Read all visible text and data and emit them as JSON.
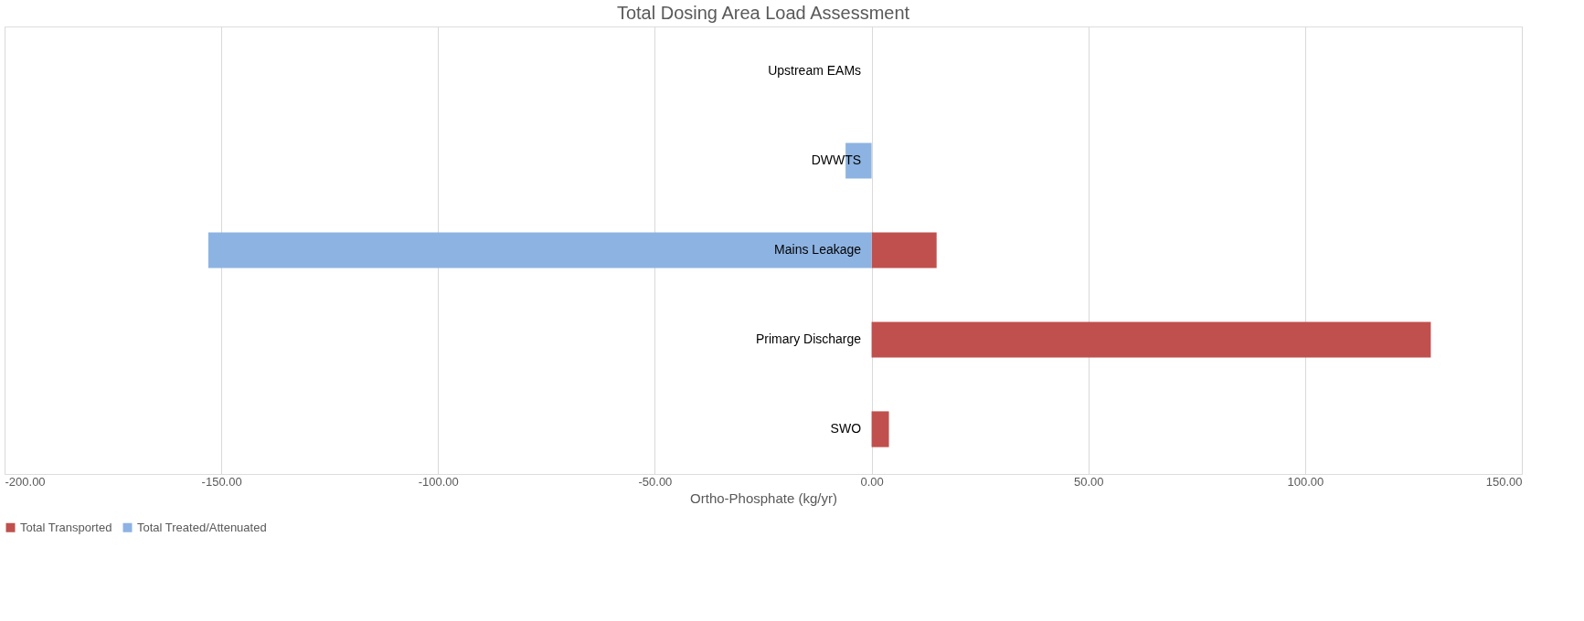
{
  "chart_data": {
    "type": "bar",
    "orientation": "horizontal",
    "title": "Total Dosing Area Load Assessment",
    "xlabel": "Ortho-Phosphate (kg/yr)",
    "categories": [
      "Upstream EAMs",
      "DWWTS",
      "Mains Leakage",
      "Primary Discharge",
      "SWO"
    ],
    "series": [
      {
        "name": "Total Transported",
        "color": "#c0504d",
        "values": [
          0,
          0,
          15,
          129,
          4
        ]
      },
      {
        "name": "Total Treated/Attenuated",
        "color": "#8db3e2",
        "values": [
          0,
          -6,
          -153,
          0,
          0
        ]
      }
    ],
    "xlim": [
      -200,
      150
    ],
    "xticks": [
      {
        "value": -200,
        "label": "-200.00"
      },
      {
        "value": -150,
        "label": "-150.00"
      },
      {
        "value": -100,
        "label": "-100.00"
      },
      {
        "value": -50,
        "label": "-50.00"
      },
      {
        "value": 0,
        "label": "0.00"
      },
      {
        "value": 50,
        "label": "50.00"
      },
      {
        "value": 100,
        "label": "100.00"
      },
      {
        "value": 150,
        "label": "150.00"
      }
    ],
    "grid": "x",
    "legend": "bottom"
  }
}
